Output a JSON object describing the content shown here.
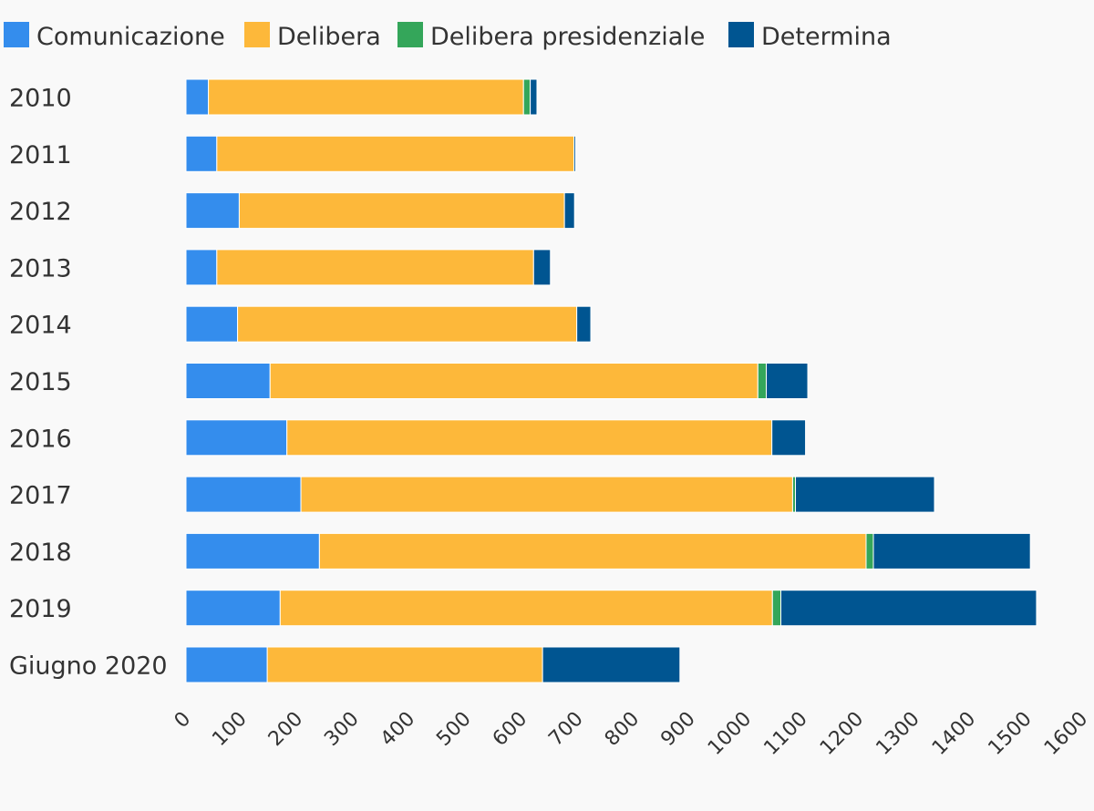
{
  "chart_data": {
    "type": "bar",
    "orientation": "horizontal",
    "stacked": true,
    "categories": [
      "2010",
      "2011",
      "2012",
      "2013",
      "2014",
      "2015",
      "2016",
      "2017",
      "2018",
      "2019",
      "Giugno 2020"
    ],
    "series": [
      {
        "name": "Comunicazione",
        "color": "#348ded",
        "values": [
          40,
          55,
          95,
          55,
          92,
          150,
          180,
          205,
          238,
          168,
          145
        ]
      },
      {
        "name": "Delibera",
        "color": "#fdb83a",
        "values": [
          562,
          637,
          580,
          565,
          605,
          870,
          865,
          877,
          975,
          878,
          491
        ]
      },
      {
        "name": "Delibera presidenziale",
        "color": "#34a65a",
        "values": [
          12,
          0,
          0,
          0,
          0,
          15,
          0,
          5,
          13,
          15,
          0
        ]
      },
      {
        "name": "Determina",
        "color": "#005591",
        "values": [
          12,
          3,
          18,
          30,
          25,
          74,
          60,
          248,
          280,
          456,
          245
        ]
      }
    ],
    "xlim": [
      0,
      1600
    ],
    "xticks": [
      "0",
      "100",
      "200",
      "300",
      "400",
      "500",
      "600",
      "700",
      "800",
      "900",
      "1000",
      "1100",
      "1200",
      "1300",
      "1400",
      "1500",
      "1600"
    ],
    "legend_position": "top-left",
    "grid": false
  }
}
